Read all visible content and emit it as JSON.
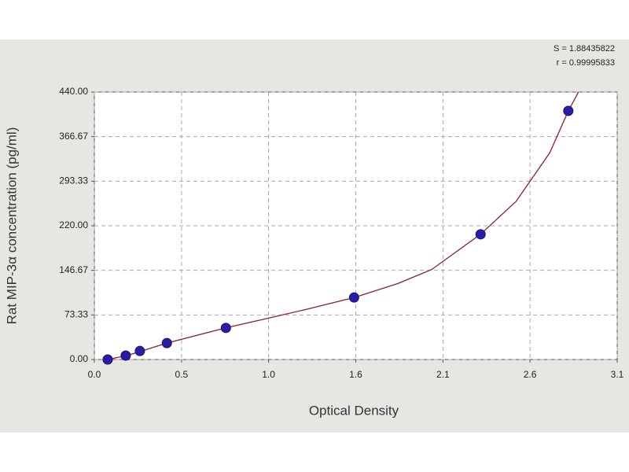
{
  "chart_data": {
    "type": "scatter",
    "x_label": "Optical Density",
    "y_label": "Rat MIP-3α concentration (pg/ml)",
    "annotations": [
      "S = 1.88435822",
      "r = 0.99995833"
    ],
    "x": [
      0.079,
      0.186,
      0.27,
      0.43,
      0.78,
      1.54,
      2.29,
      2.81
    ],
    "values": [
      0,
      6.5,
      14,
      27,
      52,
      102,
      206,
      409
    ],
    "color": "#2b1ca8",
    "fit": {
      "color": "#8b1f2f",
      "x": [
        0.079,
        0.2,
        0.43,
        0.78,
        1.0,
        1.25,
        1.54,
        1.8,
        2.0,
        2.29,
        2.5,
        2.7,
        2.81,
        2.87
      ],
      "y": [
        0,
        7,
        27,
        52,
        66,
        82,
        102,
        125,
        148,
        206,
        260,
        340,
        409,
        440
      ]
    },
    "xlim": [
      0,
      3.1
    ],
    "xticks": [
      {
        "value": 0,
        "label": "0.0"
      },
      {
        "value": 0.517,
        "label": "0.5"
      },
      {
        "value": 1.033,
        "label": "1.0"
      },
      {
        "value": 1.55,
        "label": "1.6"
      },
      {
        "value": 2.067,
        "label": "2.1"
      },
      {
        "value": 2.583,
        "label": "2.6"
      },
      3.1
    ],
    "ylim": [
      0,
      440
    ],
    "yticks": [
      {
        "value": 0,
        "label": "0.00"
      },
      73.33,
      146.67,
      {
        "value": 220,
        "label": "220.00"
      },
      293.33,
      366.67,
      {
        "value": 440,
        "label": "440.00"
      }
    ],
    "grid": true
  }
}
